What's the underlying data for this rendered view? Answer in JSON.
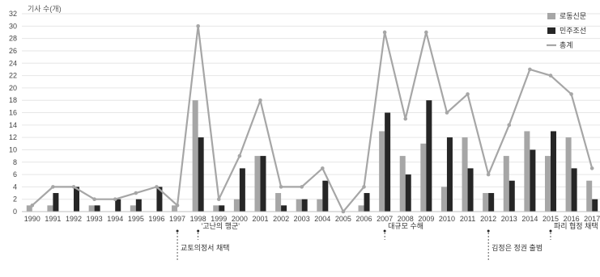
{
  "chart_data": {
    "type": "bar",
    "ylabel": "기사 수(개)",
    "ylim": [
      0,
      32
    ],
    "yticks": [
      0,
      2,
      4,
      6,
      8,
      10,
      12,
      14,
      16,
      18,
      20,
      22,
      24,
      26,
      28,
      30,
      32
    ],
    "grid": true,
    "legend_position": "top-right",
    "categories": [
      "1990",
      "1991",
      "1992",
      "1993",
      "1994",
      "1995",
      "1996",
      "1997",
      "1998",
      "1999",
      "2000",
      "2001",
      "2002",
      "2003",
      "2004",
      "2005",
      "2006",
      "2007",
      "2008",
      "2009",
      "2010",
      "2011",
      "2012",
      "2013",
      "2014",
      "2015",
      "2016",
      "2017"
    ],
    "series": [
      {
        "name": "로동신문",
        "type": "bar",
        "color": "#a6a6a6",
        "values": [
          1,
          1,
          0,
          1,
          0,
          1,
          0,
          1,
          18,
          1,
          2,
          9,
          3,
          2,
          2,
          0,
          1,
          13,
          9,
          11,
          4,
          12,
          3,
          9,
          13,
          9,
          12,
          5
        ]
      },
      {
        "name": "민주조선",
        "type": "bar",
        "color": "#262626",
        "values": [
          0,
          3,
          4,
          1,
          2,
          2,
          4,
          0,
          12,
          1,
          7,
          9,
          1,
          2,
          5,
          0,
          3,
          16,
          6,
          18,
          12,
          7,
          3,
          5,
          10,
          13,
          7,
          2
        ]
      },
      {
        "name": "총계",
        "type": "line",
        "color": "#a6a6a6",
        "values": [
          1,
          4,
          4,
          2,
          2,
          3,
          4,
          1,
          30,
          2,
          9,
          18,
          4,
          4,
          7,
          0,
          4,
          29,
          15,
          29,
          16,
          19,
          6,
          14,
          23,
          22,
          19,
          7
        ]
      }
    ],
    "annotations": [
      {
        "year": "1997",
        "label": "교토의정서 채택",
        "row": 3
      },
      {
        "year": "1998",
        "label": "'고난의 행군'",
        "row": 1
      },
      {
        "year": "2007",
        "label": "대규모 수해",
        "row": 1
      },
      {
        "year": "2012",
        "label": "김정은 정권 출범",
        "row": 3
      },
      {
        "year": "2015",
        "label": "파리 협정 채택",
        "row": 1
      }
    ]
  }
}
